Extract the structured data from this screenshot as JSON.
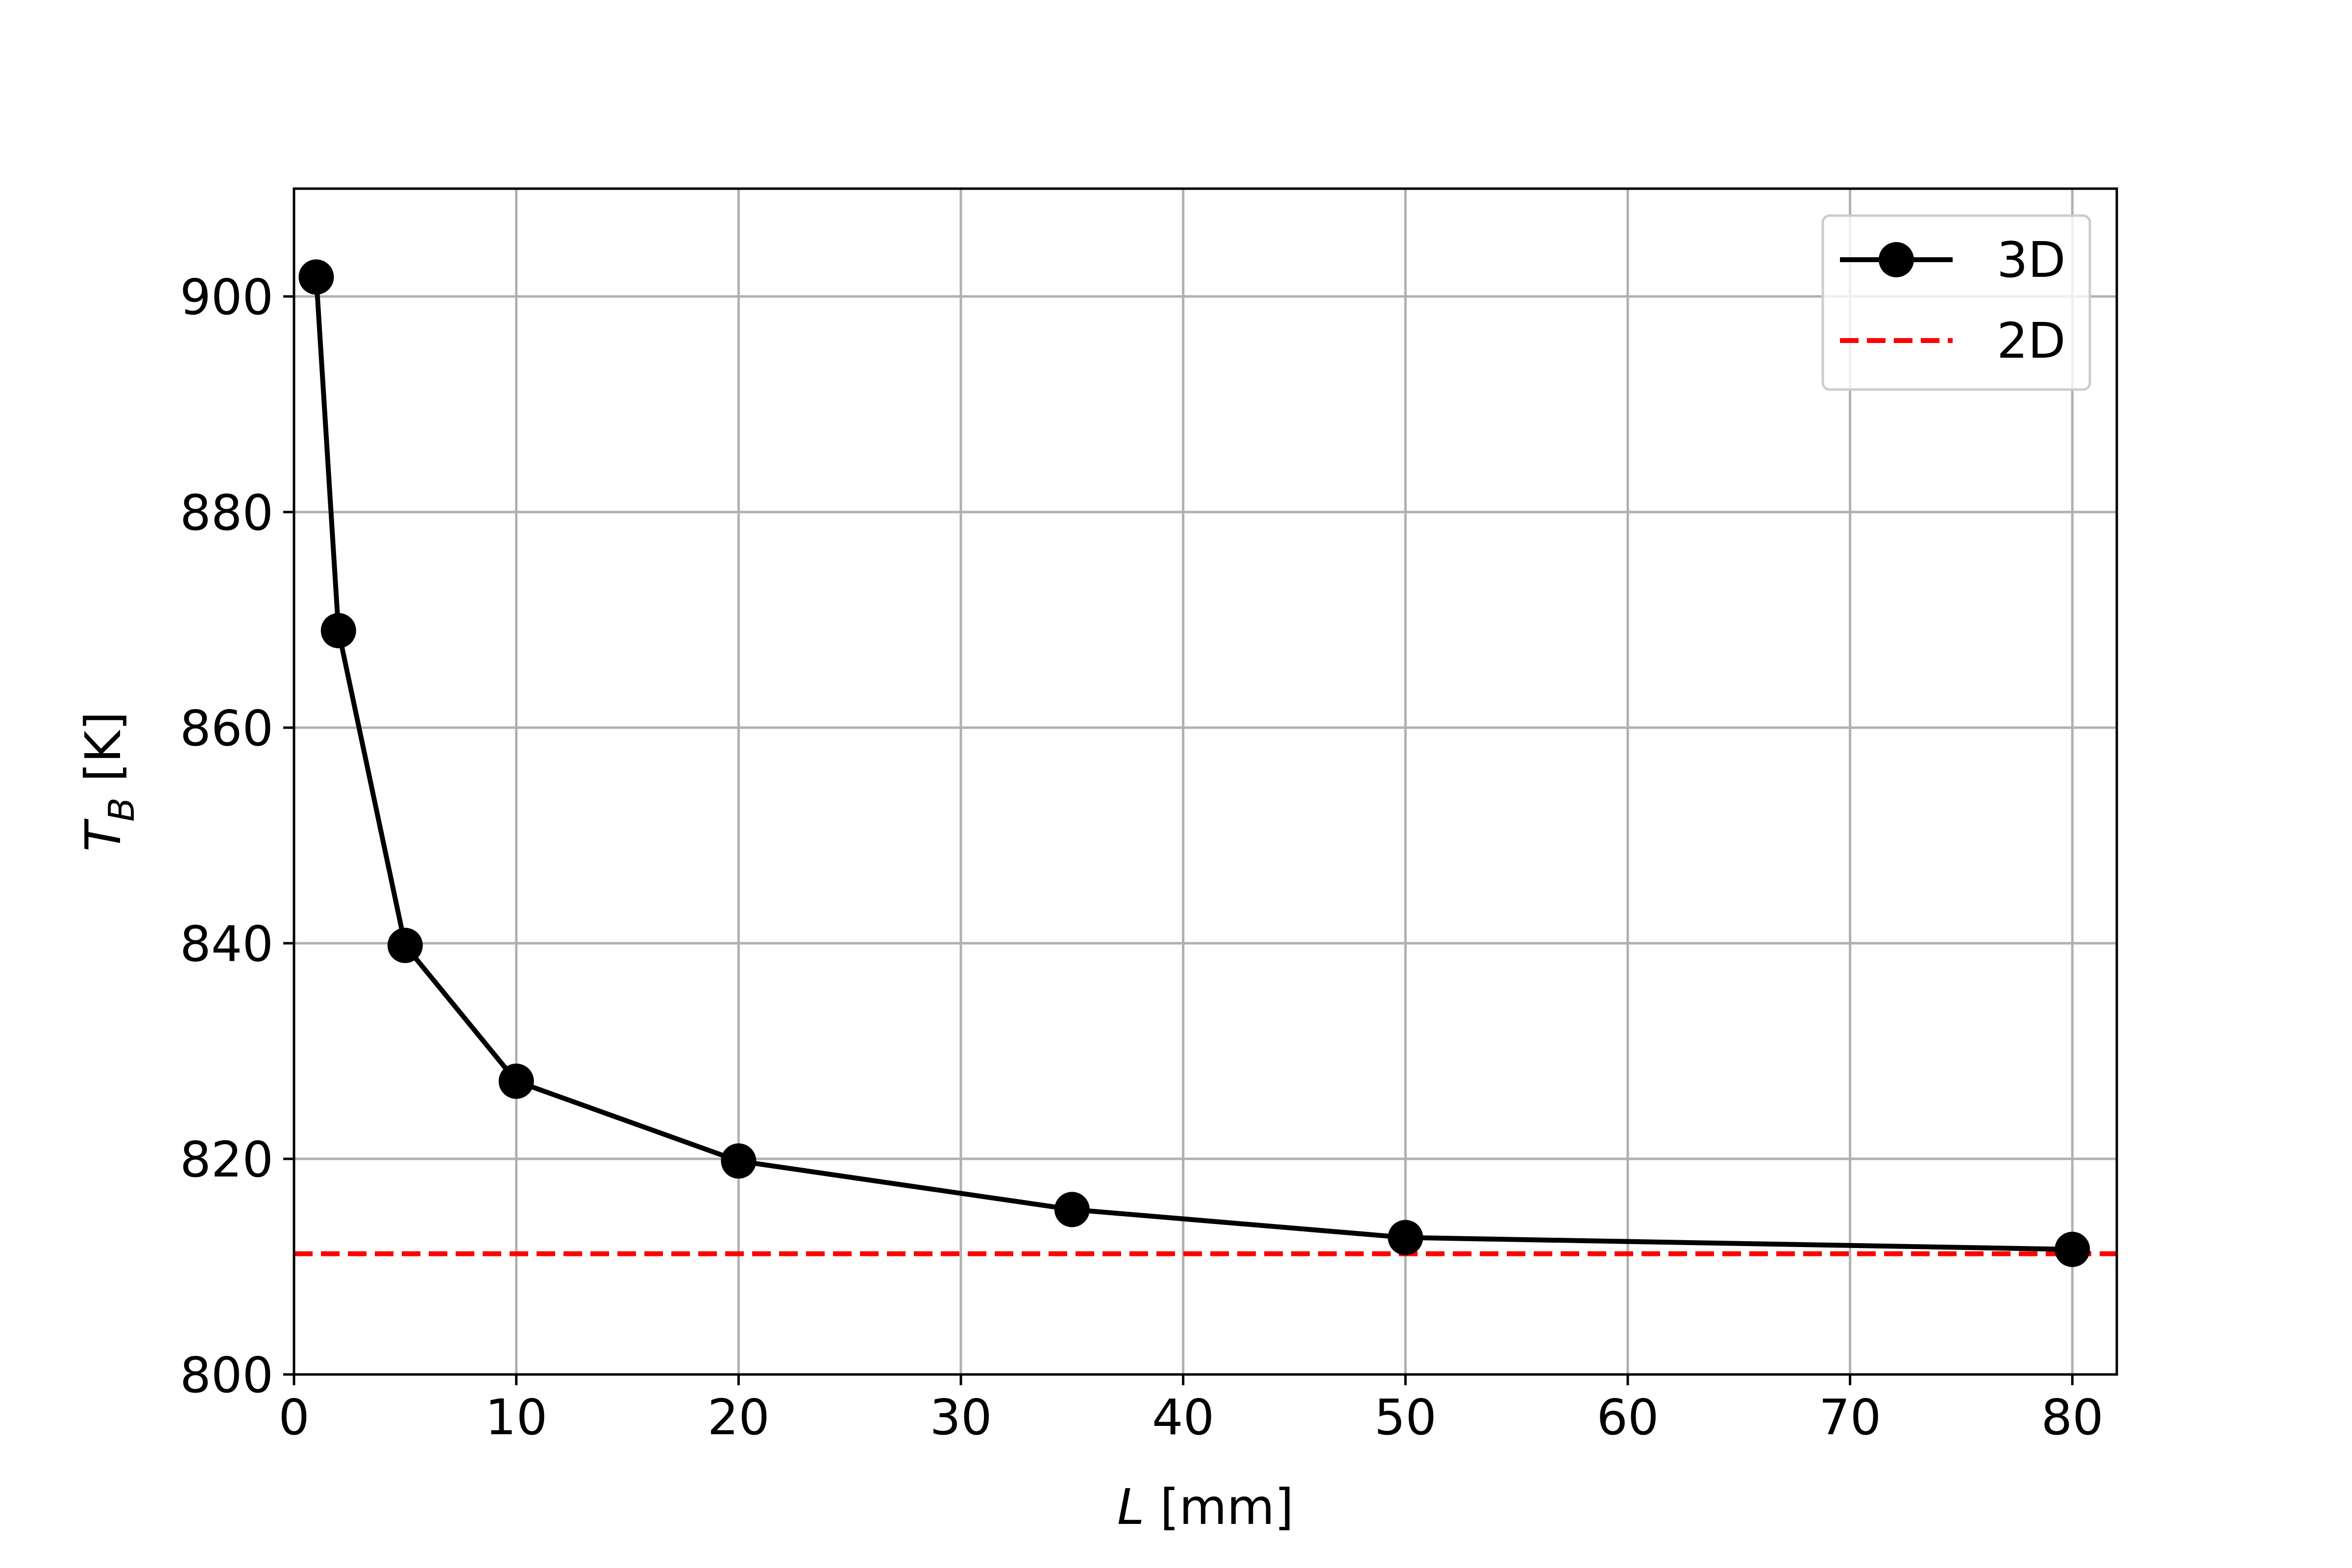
{
  "chart_data": {
    "type": "line",
    "title": "",
    "xlabel": {
      "symbol": "L",
      "unit": " [mm]"
    },
    "ylabel": {
      "symbol": "T",
      "subscript": "B",
      "unit": " [K]"
    },
    "xlim": [
      0,
      82
    ],
    "ylim": [
      800,
      910
    ],
    "xticks": [
      0,
      10,
      20,
      30,
      40,
      50,
      60,
      70,
      80
    ],
    "yticks": [
      800,
      820,
      840,
      860,
      880,
      900
    ],
    "grid": true,
    "legend_position": "top-right",
    "series": [
      {
        "name": "3D",
        "style": "solid-markers",
        "color": "#000000",
        "x": [
          1,
          2,
          5,
          10,
          20,
          35,
          50,
          80
        ],
        "y": [
          901.8,
          869.0,
          839.8,
          827.2,
          819.8,
          815.3,
          812.7,
          811.6
        ]
      },
      {
        "name": "2D",
        "style": "dashed",
        "color": "#ff0000",
        "x": [
          0,
          82
        ],
        "y": [
          811.2,
          811.2
        ]
      }
    ]
  }
}
